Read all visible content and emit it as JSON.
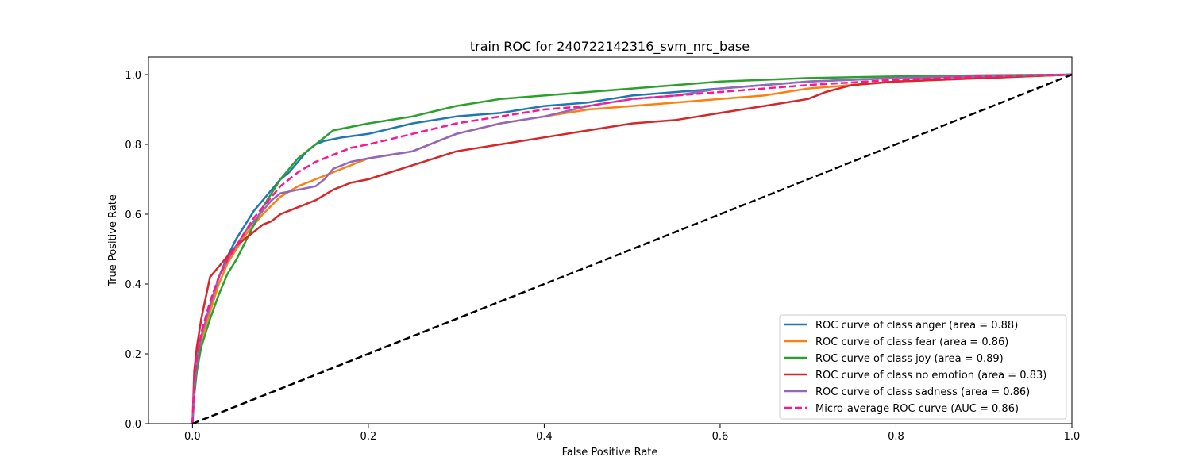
{
  "chart_data": {
    "type": "line",
    "title": "train ROC for 240722142316_svm_nrc_base",
    "xlabel": "False Positive Rate",
    "ylabel": "True Positive Rate",
    "xlim": [
      -0.05,
      1.0
    ],
    "ylim": [
      0.0,
      1.05
    ],
    "xticks": [
      "0.0",
      "0.2",
      "0.4",
      "0.6",
      "0.8",
      "1.0"
    ],
    "yticks": [
      "0.0",
      "0.2",
      "0.4",
      "0.6",
      "0.8",
      "1.0"
    ],
    "grid": false,
    "legend_position": "lower-right",
    "series": [
      {
        "name": "ROC curve of class anger (area = 0.88)",
        "color": "#1f77b4",
        "style": "solid",
        "x": [
          0,
          0.002,
          0.005,
          0.01,
          0.02,
          0.03,
          0.04,
          0.05,
          0.06,
          0.07,
          0.08,
          0.09,
          0.1,
          0.11,
          0.12,
          0.13,
          0.14,
          0.15,
          0.17,
          0.2,
          0.25,
          0.3,
          0.35,
          0.4,
          0.45,
          0.5,
          0.55,
          0.6,
          0.65,
          0.7,
          0.8,
          0.9,
          1.0
        ],
        "y": [
          0,
          0.1,
          0.18,
          0.25,
          0.33,
          0.42,
          0.48,
          0.53,
          0.57,
          0.61,
          0.64,
          0.67,
          0.7,
          0.72,
          0.75,
          0.78,
          0.8,
          0.81,
          0.82,
          0.83,
          0.86,
          0.88,
          0.89,
          0.91,
          0.92,
          0.94,
          0.95,
          0.96,
          0.97,
          0.98,
          0.99,
          0.995,
          1.0
        ]
      },
      {
        "name": "ROC curve of class fear (area = 0.86)",
        "color": "#ff7f0e",
        "style": "solid",
        "x": [
          0,
          0.002,
          0.005,
          0.01,
          0.02,
          0.03,
          0.04,
          0.05,
          0.06,
          0.07,
          0.08,
          0.1,
          0.12,
          0.14,
          0.16,
          0.18,
          0.2,
          0.25,
          0.3,
          0.35,
          0.4,
          0.45,
          0.5,
          0.55,
          0.6,
          0.65,
          0.7,
          0.75,
          0.8,
          0.9,
          1.0
        ],
        "y": [
          0,
          0.1,
          0.17,
          0.24,
          0.32,
          0.4,
          0.46,
          0.5,
          0.54,
          0.57,
          0.6,
          0.65,
          0.68,
          0.7,
          0.72,
          0.74,
          0.76,
          0.78,
          0.83,
          0.86,
          0.88,
          0.9,
          0.91,
          0.92,
          0.93,
          0.94,
          0.96,
          0.97,
          0.98,
          0.99,
          1.0
        ]
      },
      {
        "name": "ROC curve of class joy (area = 0.89)",
        "color": "#2ca02c",
        "style": "solid",
        "x": [
          0,
          0.002,
          0.005,
          0.01,
          0.02,
          0.03,
          0.04,
          0.05,
          0.06,
          0.07,
          0.08,
          0.09,
          0.1,
          0.11,
          0.12,
          0.13,
          0.14,
          0.15,
          0.16,
          0.18,
          0.2,
          0.25,
          0.3,
          0.35,
          0.4,
          0.45,
          0.5,
          0.55,
          0.6,
          0.65,
          0.7,
          0.8,
          0.9,
          1.0
        ],
        "y": [
          0,
          0.08,
          0.15,
          0.22,
          0.3,
          0.37,
          0.43,
          0.47,
          0.52,
          0.57,
          0.62,
          0.66,
          0.7,
          0.73,
          0.76,
          0.78,
          0.8,
          0.82,
          0.84,
          0.85,
          0.86,
          0.88,
          0.91,
          0.93,
          0.94,
          0.95,
          0.96,
          0.97,
          0.98,
          0.985,
          0.99,
          0.995,
          0.998,
          1.0
        ]
      },
      {
        "name": "ROC curve of class no emotion (area = 0.83)",
        "color": "#d62728",
        "style": "solid",
        "x": [
          0,
          0.002,
          0.005,
          0.01,
          0.02,
          0.03,
          0.04,
          0.05,
          0.06,
          0.07,
          0.08,
          0.09,
          0.1,
          0.12,
          0.14,
          0.16,
          0.18,
          0.2,
          0.25,
          0.3,
          0.35,
          0.4,
          0.45,
          0.5,
          0.55,
          0.6,
          0.65,
          0.7,
          0.72,
          0.75,
          0.8,
          0.9,
          1.0
        ],
        "y": [
          0,
          0.15,
          0.22,
          0.3,
          0.42,
          0.45,
          0.48,
          0.51,
          0.53,
          0.55,
          0.57,
          0.58,
          0.6,
          0.62,
          0.64,
          0.67,
          0.69,
          0.7,
          0.74,
          0.78,
          0.8,
          0.82,
          0.84,
          0.86,
          0.87,
          0.89,
          0.91,
          0.93,
          0.95,
          0.97,
          0.98,
          0.99,
          1.0
        ]
      },
      {
        "name": "ROC curve of class sadness (area = 0.86)",
        "color": "#9467bd",
        "style": "solid",
        "x": [
          0,
          0.002,
          0.005,
          0.01,
          0.02,
          0.03,
          0.04,
          0.05,
          0.06,
          0.07,
          0.08,
          0.09,
          0.1,
          0.12,
          0.14,
          0.15,
          0.16,
          0.18,
          0.2,
          0.25,
          0.3,
          0.35,
          0.4,
          0.45,
          0.5,
          0.55,
          0.6,
          0.65,
          0.7,
          0.8,
          0.9,
          1.0
        ],
        "y": [
          0,
          0.1,
          0.18,
          0.25,
          0.34,
          0.42,
          0.47,
          0.51,
          0.55,
          0.58,
          0.61,
          0.64,
          0.66,
          0.67,
          0.68,
          0.7,
          0.73,
          0.75,
          0.76,
          0.78,
          0.83,
          0.86,
          0.88,
          0.91,
          0.93,
          0.94,
          0.96,
          0.97,
          0.98,
          0.99,
          0.995,
          1.0
        ]
      },
      {
        "name": "Micro-average ROC curve (AUC = 0.86)",
        "color": "#ff1493",
        "style": "dashed",
        "x": [
          0,
          0.002,
          0.005,
          0.01,
          0.02,
          0.03,
          0.04,
          0.05,
          0.06,
          0.07,
          0.08,
          0.09,
          0.1,
          0.12,
          0.14,
          0.16,
          0.18,
          0.2,
          0.25,
          0.3,
          0.35,
          0.4,
          0.45,
          0.5,
          0.55,
          0.6,
          0.65,
          0.7,
          0.8,
          0.9,
          1.0
        ],
        "y": [
          0,
          0.12,
          0.19,
          0.26,
          0.35,
          0.42,
          0.47,
          0.51,
          0.55,
          0.59,
          0.62,
          0.65,
          0.68,
          0.72,
          0.75,
          0.77,
          0.79,
          0.8,
          0.83,
          0.86,
          0.88,
          0.9,
          0.91,
          0.93,
          0.94,
          0.95,
          0.96,
          0.97,
          0.985,
          0.995,
          1.0
        ]
      },
      {
        "name": "",
        "color": "#000000",
        "style": "dashed",
        "x": [
          0,
          1
        ],
        "y": [
          0,
          1
        ]
      }
    ]
  }
}
